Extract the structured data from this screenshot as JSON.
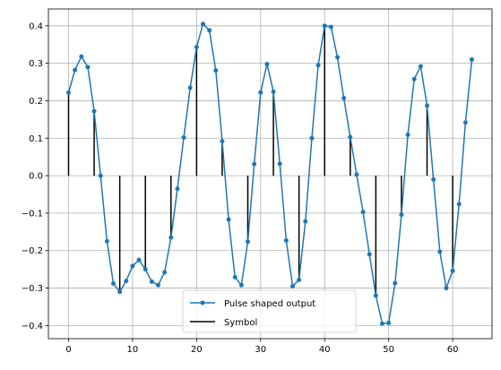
{
  "chart_data": {
    "type": "line",
    "title": "",
    "xlabel": "",
    "ylabel": "",
    "xlim": [
      -3.15,
      66.15
    ],
    "ylim": [
      -0.435,
      0.445
    ],
    "grid": true,
    "legend_placement": "bottom-center",
    "x_ticks": [
      0,
      10,
      20,
      30,
      40,
      50,
      60
    ],
    "x_tick_labels": [
      "0",
      "10",
      "20",
      "30",
      "40",
      "50",
      "60"
    ],
    "y_ticks": [
      -0.4,
      -0.3,
      -0.2,
      -0.1,
      0.0,
      0.1,
      0.2,
      0.3,
      0.4
    ],
    "y_tick_labels": [
      "−0.4",
      "−0.3",
      "−0.2",
      "−0.1",
      "0.0",
      "0.1",
      "0.2",
      "0.3",
      "0.4"
    ],
    "series": [
      {
        "name": "Pulse shaped output",
        "kind": "line-with-markers",
        "color": "#1f77b4",
        "x": [
          0,
          1,
          2,
          3,
          4,
          5,
          6,
          7,
          8,
          9,
          10,
          11,
          12,
          13,
          14,
          15,
          16,
          17,
          18,
          19,
          20,
          21,
          22,
          23,
          24,
          25,
          26,
          27,
          28,
          29,
          30,
          31,
          32,
          33,
          34,
          35,
          36,
          37,
          38,
          39,
          40,
          41,
          42,
          43,
          44,
          45,
          46,
          47,
          48,
          49,
          50,
          51,
          52,
          53,
          54,
          55,
          56,
          57,
          58,
          59,
          60,
          61,
          62,
          63
        ],
        "y": [
          0.222,
          0.282,
          0.318,
          0.29,
          0.172,
          0.0,
          -0.175,
          -0.288,
          -0.31,
          -0.281,
          -0.241,
          -0.225,
          -0.25,
          -0.283,
          -0.292,
          -0.258,
          -0.165,
          -0.035,
          0.102,
          0.235,
          0.343,
          0.405,
          0.388,
          0.281,
          0.092,
          -0.117,
          -0.271,
          -0.292,
          -0.176,
          0.031,
          0.222,
          0.298,
          0.224,
          0.032,
          -0.173,
          -0.295,
          -0.278,
          -0.122,
          0.1,
          0.295,
          0.4,
          0.397,
          0.316,
          0.207,
          0.103,
          0.003,
          -0.097,
          -0.21,
          -0.32,
          -0.395,
          -0.393,
          -0.287,
          -0.104,
          0.109,
          0.258,
          0.292,
          0.187,
          -0.01,
          -0.203,
          -0.3,
          -0.254,
          -0.076,
          0.142,
          0.31
        ]
      },
      {
        "name": "Symbol",
        "kind": "stem",
        "color": "#000000",
        "x": [
          0,
          4,
          8,
          12,
          16,
          20,
          24,
          28,
          32,
          36,
          40,
          44,
          48,
          52,
          56,
          60
        ],
        "y": [
          0.222,
          0.172,
          -0.31,
          -0.25,
          -0.165,
          0.343,
          0.092,
          -0.176,
          0.224,
          -0.278,
          0.4,
          0.103,
          -0.32,
          -0.104,
          0.187,
          -0.254
        ]
      }
    ]
  }
}
